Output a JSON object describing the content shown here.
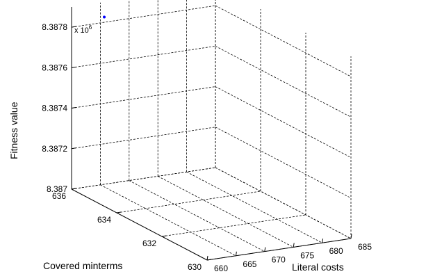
{
  "chart_data": {
    "type": "scatter",
    "title": "",
    "x_axis": {
      "label": "Literal costs",
      "range": [
        660,
        685
      ],
      "ticks": [
        660,
        665,
        670,
        675,
        680,
        685
      ]
    },
    "y_axis": {
      "label": "Covered minterms",
      "range": [
        630,
        636
      ],
      "ticks": [
        630,
        632,
        634,
        636
      ]
    },
    "z_axis": {
      "label": "Fitness value",
      "range": [
        8.387,
        8.3879
      ],
      "ticks": [
        "8.387",
        "8.3872",
        "8.3874",
        "8.3876",
        "8.3878"
      ],
      "exponent_label": "x 10",
      "exponent": "6"
    },
    "points": [
      {
        "x": 660,
        "y": 636,
        "z": 8.38785,
        "color": "#0000ff"
      }
    ],
    "grid": true
  }
}
